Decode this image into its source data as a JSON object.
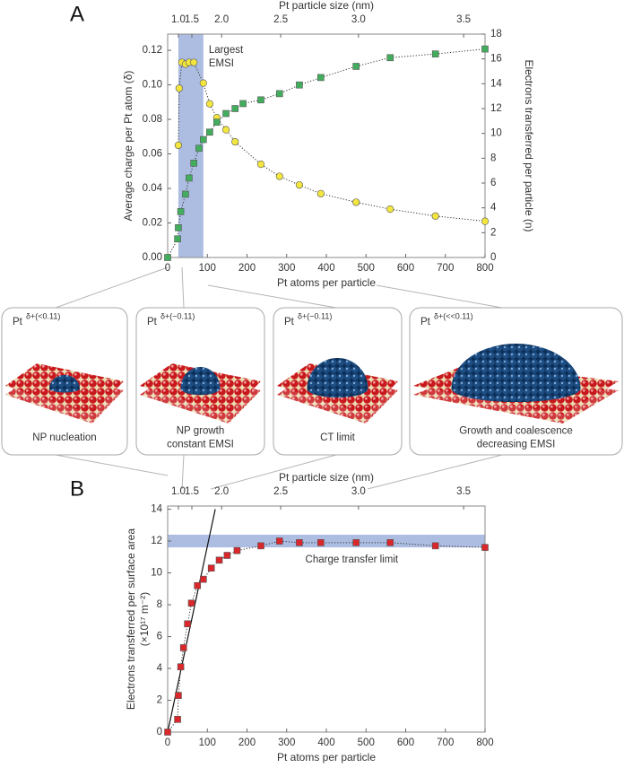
{
  "figure_labels": [
    "A",
    "B"
  ],
  "panels": [
    {
      "label": "Pt",
      "superscript": "δ+(<0.11)",
      "caption": [
        "NP nucleation"
      ]
    },
    {
      "label": "Pt",
      "superscript": "δ+(~0.11)",
      "caption": [
        "NP growth",
        "constant EMSI"
      ]
    },
    {
      "label": "Pt",
      "superscript": "δ+(~0.11)",
      "caption": [
        "CT limit"
      ]
    },
    {
      "label": "Pt",
      "superscript": "δ+(<<0.11)",
      "caption": [
        "Growth and coalescence",
        "decreasing EMSI"
      ]
    }
  ],
  "chart_data": [
    {
      "type": "line",
      "xlabel": "Pt atoms per particle",
      "ylabel": "Average charge per Pt atom (δ)",
      "y2label": "Electrons transferred per particle (n)",
      "x2label": "Pt particle size (nm)",
      "xlim": [
        0,
        800
      ],
      "xticks": [
        0,
        100,
        200,
        300,
        400,
        500,
        600,
        700,
        800
      ],
      "ylim": [
        0,
        0.1294
      ],
      "yticks": [
        {
          "value": 0,
          "label": "0.00"
        },
        0.02,
        0.04,
        0.06,
        0.08,
        {
          "value": 0.1,
          "label": "0.10"
        },
        {
          "value": 0.12,
          "label": "0.12"
        }
      ],
      "y2lim": [
        0,
        18
      ],
      "y2ticks": [
        0,
        2,
        4,
        6,
        8,
        10,
        12,
        14,
        16,
        18
      ],
      "x2ticks": [
        {
          "value": 27,
          "label": "1.0"
        },
        {
          "value": 61,
          "label": "1.5"
        },
        {
          "value": 136,
          "label": "2.0"
        },
        {
          "value": 285,
          "label": "2.5"
        },
        {
          "value": 481,
          "label": "3.0"
        },
        {
          "value": 746,
          "label": "3.5"
        }
      ],
      "highlight": {
        "xlim": [
          27,
          90
        ],
        "color": "#9fb2dd",
        "label": [
          "Largest",
          "EMSI"
        ]
      },
      "series": [
        {
          "color": "#f3e63f",
          "marker": "circle",
          "x": [
            27,
            29,
            36,
            45,
            54,
            66,
            90,
            106,
            124,
            147,
            170,
            235,
            282,
            332,
            386,
            475,
            561,
            675,
            800
          ],
          "values": [
            0.065,
            0.098,
            0.113,
            0.112,
            0.113,
            0.113,
            0.101,
            0.089,
            0.081,
            0.074,
            0.067,
            0.054,
            0.047,
            0.042,
            0.037,
            0.032,
            0.028,
            0.024,
            0.021
          ]
        },
        {
          "color": "#43ad5e",
          "marker": "square",
          "axis": "y2",
          "x": [
            0,
            25,
            27,
            33,
            45,
            54,
            66,
            79,
            90,
            106,
            124,
            147,
            170,
            190,
            235,
            282,
            332,
            386,
            475,
            561,
            675,
            800
          ],
          "values": [
            0,
            1.5,
            2.4,
            3.7,
            5.1,
            6.4,
            7.6,
            8.8,
            9.5,
            10.1,
            10.9,
            11.6,
            12.0,
            12.4,
            12.7,
            13.2,
            13.9,
            14.5,
            15.4,
            16.1,
            16.4,
            16.8
          ]
        }
      ]
    },
    {
      "type": "line",
      "xlabel": "Pt atoms per particle",
      "ylabel": [
        "Electrons transferred per surface area",
        "(×10¹⁷ m⁻²)"
      ],
      "x2label": "Pt particle size (nm)",
      "xlim": [
        0,
        800
      ],
      "xticks": [
        0,
        100,
        200,
        300,
        400,
        500,
        600,
        700,
        800
      ],
      "ylim": [
        0,
        14.2
      ],
      "yticks": [
        0,
        2,
        4,
        6,
        8,
        10,
        12,
        14
      ],
      "x2ticks": [
        {
          "value": 27,
          "label": "1.0"
        },
        {
          "value": 61,
          "label": "1.5"
        },
        {
          "value": 136,
          "label": "2.0"
        },
        {
          "value": 285,
          "label": "2.5"
        },
        {
          "value": 481,
          "label": "3.0"
        },
        {
          "value": 746,
          "label": "3.5"
        }
      ],
      "band": {
        "ylim": [
          11.6,
          12.4
        ],
        "color": "#9fb2dd",
        "label": "Charge transfer limit"
      },
      "fit_line": {
        "x": [
          0,
          120
        ],
        "values": [
          0,
          14
        ]
      },
      "series": [
        {
          "color": "#d9272c",
          "marker": "square",
          "x": [
            0,
            25,
            27,
            33,
            40,
            50,
            60,
            75,
            90,
            110,
            130,
            150,
            175,
            235,
            282,
            332,
            386,
            475,
            561,
            675,
            800
          ],
          "values": [
            0,
            0.8,
            2.3,
            4.1,
            5.3,
            6.8,
            8.1,
            9.2,
            9.6,
            10.3,
            10.8,
            11.1,
            11.4,
            11.7,
            12.0,
            11.9,
            11.9,
            11.9,
            11.9,
            11.7,
            11.6
          ]
        }
      ]
    }
  ]
}
